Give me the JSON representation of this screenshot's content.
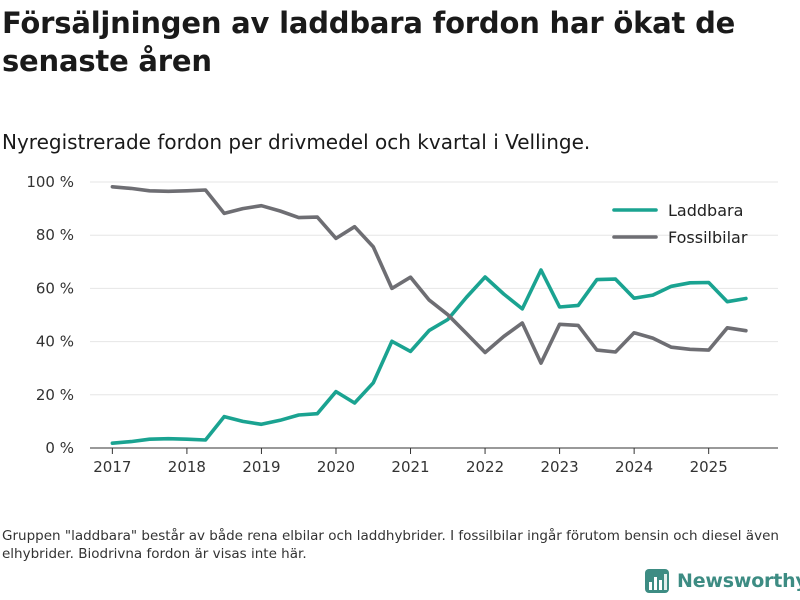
{
  "title": "Försäljningen av laddbara fordon har ökat de senaste åren",
  "subtitle": "Nyregistrerade fordon per drivmedel och kvartal i Vellinge.",
  "footnote": "Gruppen \"laddbara\" består av både rena elbilar och laddhybrider. I fossilbilar ingår förutom bensin och diesel även elhybrider. Biodrivna fordon är visas inte här.",
  "brand": {
    "name": "Newsworthy",
    "icon": "newsworthy-logo-icon"
  },
  "colors": {
    "laddbara": "#1aa391",
    "fossilbilar": "#6e6e73",
    "grid": "#e6e6e6",
    "axis": "#333333",
    "brand": "#3d8c83"
  },
  "chart_data": {
    "type": "line",
    "title": "Försäljningen av laddbara fordon har ökat de senaste åren",
    "subtitle": "Nyregistrerade fordon per drivmedel och kvartal i Vellinge.",
    "xlabel": "",
    "ylabel": "",
    "x": [
      2017.0,
      2017.25,
      2017.5,
      2017.75,
      2018.0,
      2018.25,
      2018.5,
      2018.75,
      2019.0,
      2019.25,
      2019.5,
      2019.75,
      2020.0,
      2020.25,
      2020.5,
      2020.75,
      2021.0,
      2021.25,
      2021.5,
      2021.75,
      2022.0,
      2022.25,
      2022.5,
      2022.75,
      2023.0,
      2023.25,
      2023.5,
      2023.75,
      2024.0,
      2024.25,
      2024.5,
      2024.75,
      2025.0,
      2025.25,
      2025.5
    ],
    "xlim": [
      2016.7,
      2025.93
    ],
    "ylim": [
      0,
      100
    ],
    "x_ticks": [
      2017,
      2018,
      2019,
      2020,
      2021,
      2022,
      2023,
      2024,
      2025
    ],
    "x_tick_labels": [
      "2017",
      "2018",
      "2019",
      "2020",
      "2021",
      "2022",
      "2023",
      "2024",
      "2025"
    ],
    "y_ticks": [
      0,
      20,
      40,
      60,
      80,
      100
    ],
    "y_tick_labels": [
      "0 %",
      "20 %",
      "40 %",
      "60 %",
      "80 %",
      "100 %"
    ],
    "grid": true,
    "legend_position": "top-right",
    "series": [
      {
        "name": "Laddbara",
        "key": "laddbara",
        "values": [
          1.8,
          2.4,
          3.3,
          3.5,
          3.3,
          3.0,
          11.8,
          10.0,
          8.9,
          10.4,
          12.4,
          12.9,
          21.2,
          16.9,
          24.5,
          40.1,
          36.3,
          44.2,
          48.3,
          56.6,
          64.3,
          57.9,
          52.3,
          66.9,
          53.0,
          53.6,
          63.3,
          63.5,
          56.3,
          57.5,
          60.8,
          62.1,
          62.2,
          55.0,
          56.2
        ]
      },
      {
        "name": "Fossilbilar",
        "key": "fossilbilar",
        "values": [
          98.2,
          97.6,
          96.7,
          96.5,
          96.7,
          97.0,
          88.2,
          90.0,
          91.1,
          89.1,
          86.6,
          86.8,
          78.8,
          83.2,
          75.6,
          60.0,
          64.2,
          55.6,
          50.1,
          43.1,
          35.9,
          41.9,
          47.0,
          31.9,
          46.5,
          46.1,
          36.8,
          36.1,
          43.3,
          41.3,
          37.9,
          37.1,
          36.8,
          45.2,
          44.1
        ]
      }
    ]
  }
}
